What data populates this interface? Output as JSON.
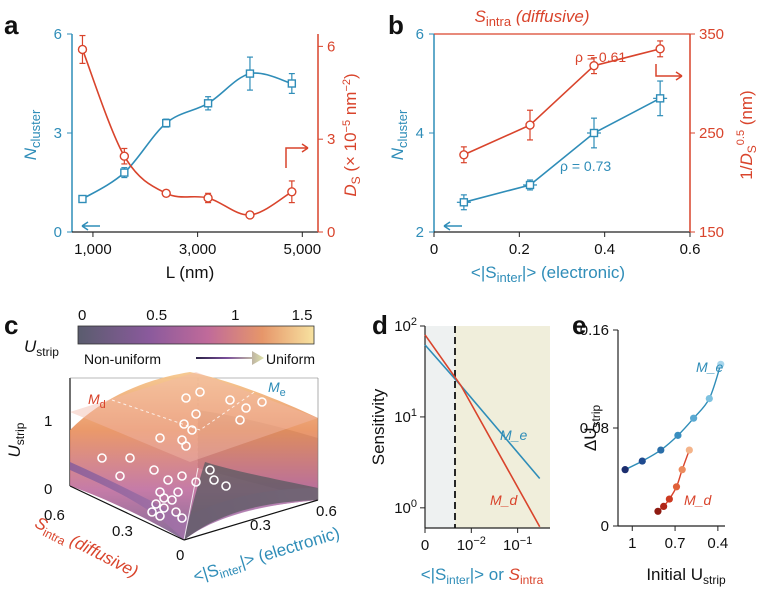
{
  "colors": {
    "blue": "#2f8db8",
    "red": "#d9442c",
    "dark": "#222222",
    "grey": "#8a8a8a"
  },
  "panels": {
    "a": {
      "label": "a"
    },
    "b": {
      "label": "b"
    },
    "c": {
      "label": "c"
    },
    "d": {
      "label": "d"
    },
    "e": {
      "label": "e"
    }
  },
  "chart_data": [
    {
      "panel": "a",
      "type": "scatter",
      "x_label": "L (nm)",
      "x_ticks": [
        "1,000",
        "3,000",
        "5,000"
      ],
      "xlim": [
        600,
        5300
      ],
      "y_left": {
        "label_main": "N",
        "label_sub": "cluster",
        "lim": [
          0,
          6
        ],
        "ticks": [
          "0",
          "3",
          "6"
        ]
      },
      "y_right": {
        "label": "D_S (× 10^-5 nm^-2)",
        "lim": [
          0,
          6.4
        ],
        "ticks": [
          "0",
          "3",
          "6"
        ]
      },
      "series": [
        {
          "axis": "left",
          "color": "#2f8db8",
          "marker": "square",
          "x": [
            800,
            1600,
            2400,
            3200,
            4000,
            4800
          ],
          "y": [
            1.0,
            1.8,
            3.3,
            3.9,
            4.8,
            4.5
          ],
          "err": [
            0.08,
            0.15,
            0.12,
            0.2,
            0.5,
            0.3
          ]
        },
        {
          "axis": "right",
          "color": "#d9442c",
          "marker": "circle",
          "x": [
            800,
            1600,
            2400,
            3200,
            4000,
            4800
          ],
          "y": [
            5.9,
            2.45,
            1.25,
            1.1,
            0.55,
            1.3
          ],
          "err": [
            0.45,
            0.25,
            0.1,
            0.15,
            0.1,
            0.35
          ]
        }
      ]
    },
    {
      "panel": "b",
      "type": "scatter",
      "title_main": "S",
      "title_sub": "intra",
      "title_tail": " (diffusive)",
      "x_label_main": "<|S",
      "x_label_sub": "inter",
      "x_label_tail": "|> (electronic)",
      "x_ticks": [
        "0",
        "0.2",
        "0.4",
        "0.6"
      ],
      "xlim": [
        0,
        0.6
      ],
      "y_left": {
        "label_main": "N",
        "label_sub": "cluster",
        "lim": [
          2,
          6
        ],
        "ticks": [
          "2",
          "4",
          "6"
        ]
      },
      "y_right": {
        "label": "1/D_S^0.5 (nm)",
        "lim": [
          150,
          350
        ],
        "ticks": [
          "150",
          "250",
          "350"
        ]
      },
      "annotations": [
        "ρ = 0.61",
        "ρ = 0.73"
      ],
      "series": [
        {
          "axis": "right",
          "color": "#d9442c",
          "marker": "circle",
          "x": [
            0.07,
            0.225,
            0.375,
            0.53
          ],
          "y": [
            228,
            258,
            318,
            335
          ],
          "err": [
            8,
            15,
            8,
            8
          ]
        },
        {
          "axis": "left",
          "color": "#2f8db8",
          "marker": "square",
          "x": [
            0.07,
            0.225,
            0.375,
            0.53
          ],
          "y": [
            2.6,
            2.95,
            4.0,
            4.7
          ],
          "err": [
            0.15,
            0.1,
            0.3,
            0.35
          ]
        }
      ]
    },
    {
      "panel": "c",
      "type": "surface-3d",
      "colorbar": {
        "label_main": "U",
        "label_sub": "strip",
        "ticks": [
          "0",
          "0.5",
          "1",
          "1.5"
        ],
        "lim": [
          0,
          1.5
        ]
      },
      "gradient_labels": [
        "Non-uniform",
        "Uniform"
      ],
      "z_label_main": "U",
      "z_label_sub": "strip",
      "z_ticks": [
        "0",
        "1"
      ],
      "x_label_main": "S",
      "x_label_sub": "intra",
      "x_label_tail": " (diffusive)",
      "x_ticks": [
        "0.6",
        "0.3",
        "0"
      ],
      "y_label_main": "<|S",
      "y_label_sub": "inter",
      "y_label_tail": "|> (electronic)",
      "y_ticks": [
        "0.3",
        "0.6"
      ],
      "plane_labels": {
        "d": "M_d",
        "e": "M_e"
      },
      "points_count": 32
    },
    {
      "panel": "d",
      "type": "line",
      "y_label": "Sensitivity",
      "y_scale": "log",
      "y_ticks": [
        "10^0",
        "10^1",
        "10^2"
      ],
      "ylim": [
        0.6,
        100
      ],
      "x_scale": "log",
      "x_ticks": [
        "0",
        "10^-2",
        "10^-1"
      ],
      "x_label_parts": [
        "<|S",
        "inter",
        "|> or ",
        "S",
        "intra"
      ],
      "threshold_x": 0.006,
      "series": [
        {
          "name": "M_e",
          "color": "#2f8db8",
          "x": [
            0.001,
            0.006,
            0.3
          ],
          "y": [
            62,
            22,
            2.1
          ]
        },
        {
          "name": "M_d",
          "color": "#d9442c",
          "x": [
            0.001,
            0.006,
            0.3
          ],
          "y": [
            80,
            22,
            0.62
          ]
        }
      ]
    },
    {
      "panel": "e",
      "type": "scatter",
      "y_label_main": "ΔU",
      "y_label_sub": "strip",
      "x_label_main": "Initial U",
      "x_label_sub": "strip",
      "x_ticks": [
        "1",
        "0.7",
        "0.4"
      ],
      "xlim": [
        1.1,
        0.35
      ],
      "y_ticks": [
        "0",
        "0.08",
        "0.16"
      ],
      "ylim": [
        0,
        0.16
      ],
      "series": [
        {
          "name": "M_e",
          "x": [
            1.05,
            0.93,
            0.8,
            0.68,
            0.57,
            0.46,
            0.38
          ],
          "y": [
            0.046,
            0.053,
            0.062,
            0.074,
            0.088,
            0.104,
            0.132
          ],
          "colors": [
            "#1b2d6e",
            "#1f4a8f",
            "#2a6ea8",
            "#3a8ebf",
            "#5aa9d2",
            "#7ec2e0",
            "#a8d6ec"
          ]
        },
        {
          "name": "M_d",
          "x": [
            0.82,
            0.78,
            0.74,
            0.69,
            0.65,
            0.6
          ],
          "y": [
            0.012,
            0.016,
            0.022,
            0.032,
            0.046,
            0.062
          ],
          "colors": [
            "#8e1b12",
            "#b02618",
            "#cc3a22",
            "#e06039",
            "#ec8b5e",
            "#f4b48a"
          ]
        }
      ]
    }
  ]
}
